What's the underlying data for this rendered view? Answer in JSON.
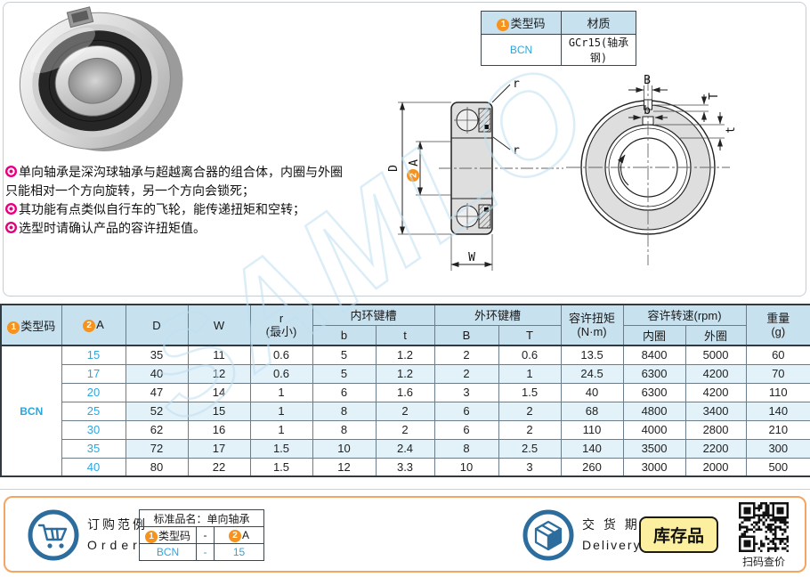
{
  "type_table": {
    "header": [
      {
        "circle": "1",
        "label": "类型码"
      },
      {
        "label": "材质"
      }
    ],
    "row": [
      "BCN",
      "GCr15(轴承钢)"
    ]
  },
  "description": {
    "bullets": [
      "单向轴承是深沟球轴承与超越离合器的组合体，内圈与外圈只能相对一个方向旋转，另一个方向会锁死；",
      "其功能有点类似自行车的飞轮，能传递扭矩和空转；",
      "选型时请确认产品的容许扭矩值。"
    ]
  },
  "drawings": {
    "section": {
      "dim_D": "D",
      "dim_A_circle": "2",
      "dim_A": "A",
      "dim_W": "W",
      "dim_r1": "r",
      "dim_r2": "r"
    },
    "front": {
      "dim_B": "B",
      "dim_T": "T",
      "dim_b": "b",
      "dim_t": "t"
    }
  },
  "watermark": "SAMLO",
  "main_table": {
    "header": {
      "type_code_circle": "1",
      "type_code": "类型码",
      "a_circle": "2",
      "a": "A",
      "d": "D",
      "w": "W",
      "r_line1": "r",
      "r_line2": "(最小)",
      "inner_keyway": "内环键槽",
      "inner_b": "b",
      "inner_t": "t",
      "outer_keyway": "外环键槽",
      "outer_B": "B",
      "outer_T": "T",
      "torque_line1": "容许扭矩",
      "torque_line2": "(N·m)",
      "speed": "容许转速(rpm)",
      "speed_inner": "内圈",
      "speed_outer": "外圈",
      "weight_line1": "重量",
      "weight_line2": "(g)"
    },
    "type_code_value": "BCN",
    "rows": [
      [
        "15",
        "35",
        "11",
        "0.6",
        "5",
        "1.2",
        "2",
        "0.6",
        "13.5",
        "8400",
        "5000",
        "60"
      ],
      [
        "17",
        "40",
        "12",
        "0.6",
        "5",
        "1.2",
        "2",
        "1",
        "24.5",
        "6300",
        "4200",
        "70"
      ],
      [
        "20",
        "47",
        "14",
        "1",
        "6",
        "1.6",
        "3",
        "1.5",
        "40",
        "6300",
        "4200",
        "110"
      ],
      [
        "25",
        "52",
        "15",
        "1",
        "8",
        "2",
        "6",
        "2",
        "68",
        "4800",
        "3400",
        "140"
      ],
      [
        "30",
        "62",
        "16",
        "1",
        "8",
        "2",
        "6",
        "2",
        "110",
        "4000",
        "2800",
        "210"
      ],
      [
        "35",
        "72",
        "17",
        "1.5",
        "10",
        "2.4",
        "8",
        "2.5",
        "140",
        "3500",
        "2200",
        "300"
      ],
      [
        "40",
        "80",
        "22",
        "1.5",
        "12",
        "3.3",
        "10",
        "3",
        "260",
        "3000",
        "2000",
        "500"
      ]
    ]
  },
  "order": {
    "title_cn": "订购范例",
    "title_en": "Order",
    "table": {
      "product_label": "标准品名：单向轴承",
      "col1_circle": "1",
      "col1_label": "类型码",
      "dash": "-",
      "col2_circle": "2",
      "col2_label": "A",
      "example_type": "BCN",
      "example_dash": "-",
      "example_a": "15"
    }
  },
  "delivery": {
    "title_cn": "交 货 期",
    "title_en": "Delivery",
    "stock_badge": "库存品"
  },
  "qr": {
    "caption": "扫码查价"
  }
}
